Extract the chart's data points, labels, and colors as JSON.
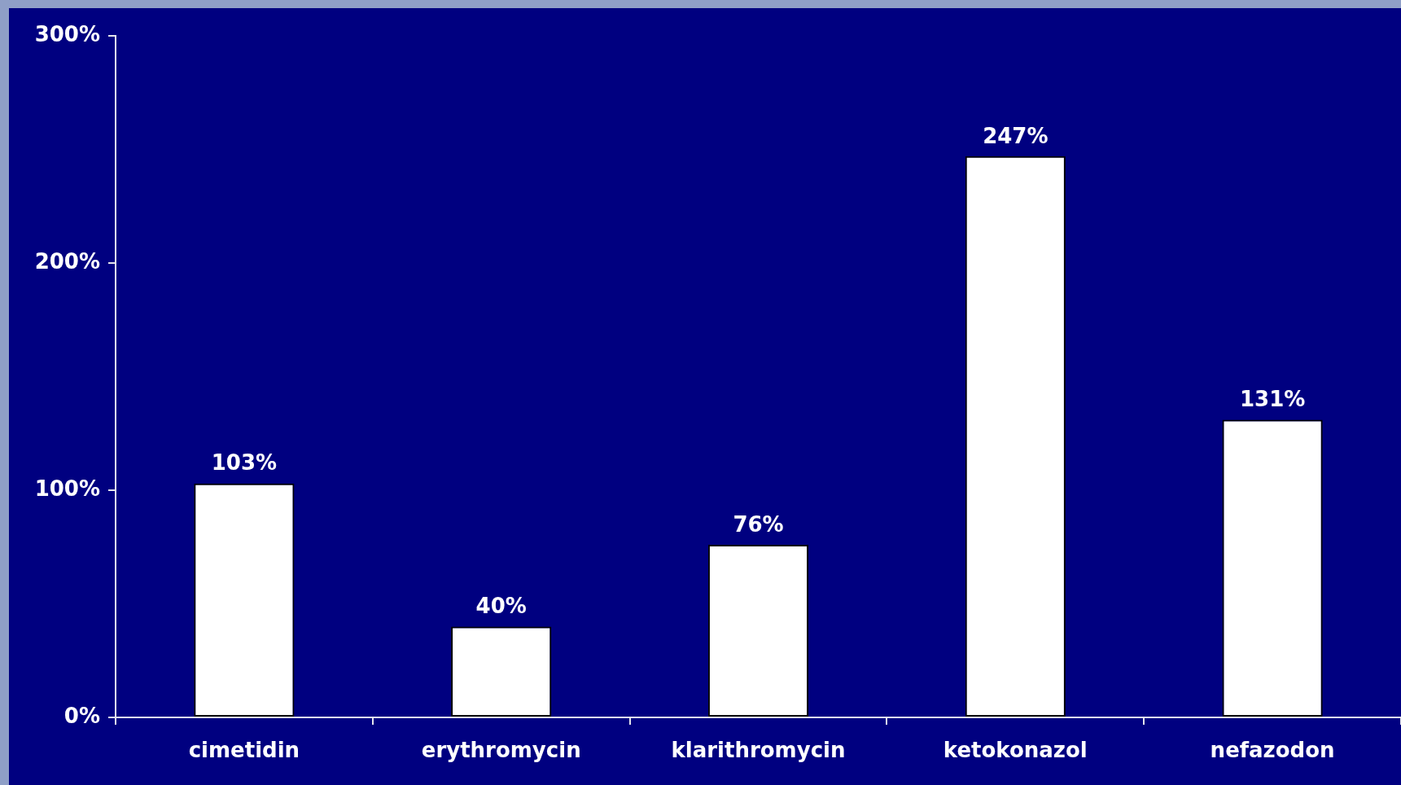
{
  "chart_data": {
    "type": "bar",
    "categories": [
      "cimetidin",
      "erythromycin",
      "klarithromycin",
      "ketokonazol",
      "nefazodon"
    ],
    "values": [
      103,
      40,
      76,
      247,
      131
    ],
    "value_labels": [
      "103%",
      "40%",
      "76%",
      "247%",
      "131%"
    ],
    "color": "#ffffff",
    "ylim": [
      0,
      300
    ],
    "yticks": [
      {
        "value": 0,
        "label": "0%"
      },
      {
        "value": 100,
        "label": "100%"
      },
      {
        "value": 200,
        "label": "200%"
      },
      {
        "value": 300,
        "label": "300%"
      }
    ]
  }
}
